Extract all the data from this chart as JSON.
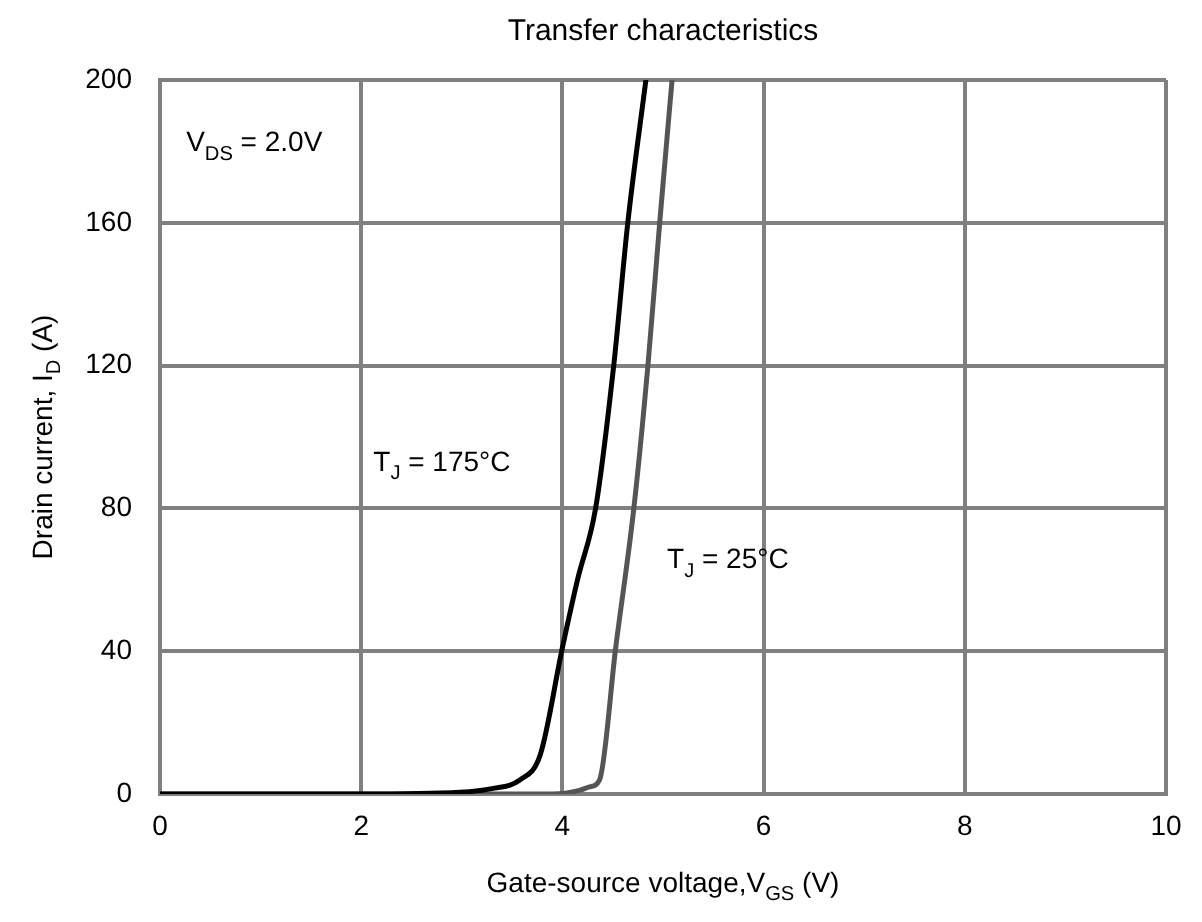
{
  "chart_data": {
    "type": "line",
    "title": "Transfer characteristics",
    "xlabel": "Gate-source voltage,V$_{GS}$ (V)",
    "ylabel": "Drain current, I$_{D}$ (A)",
    "xlim": [
      0,
      10
    ],
    "xticks": [
      0,
      2,
      4,
      6,
      8,
      10
    ],
    "ylim": [
      0,
      200
    ],
    "yticks": [
      0,
      40,
      80,
      120,
      160,
      200
    ],
    "grid": true,
    "marker": "none",
    "line_style": "solid",
    "legend": false,
    "annotations": [
      "V$_{DS}$ = 2.0V",
      "T$_{J}$ = 175°C",
      "T$_{J}$ = 25°C"
    ],
    "series": [
      {
        "color": "#000000",
        "x": [
          0,
          1,
          2,
          2.98,
          3.3,
          3.58,
          3.78,
          4,
          4.15,
          4.33,
          4.51,
          4.65,
          4.83
        ],
        "values": [
          0,
          0,
          0,
          0.5,
          1.5,
          4,
          11,
          41,
          60,
          80,
          120,
          160,
          200
        ]
      },
      {
        "color": "#555555",
        "x": [
          0,
          1,
          2,
          3,
          3.9,
          4.17,
          4.27,
          4.37,
          4.53,
          4.71,
          4.85,
          4.97,
          5.09
        ],
        "values": [
          0,
          0,
          0,
          0,
          0,
          1,
          2,
          4,
          41,
          80,
          120,
          161,
          200
        ]
      }
    ]
  }
}
